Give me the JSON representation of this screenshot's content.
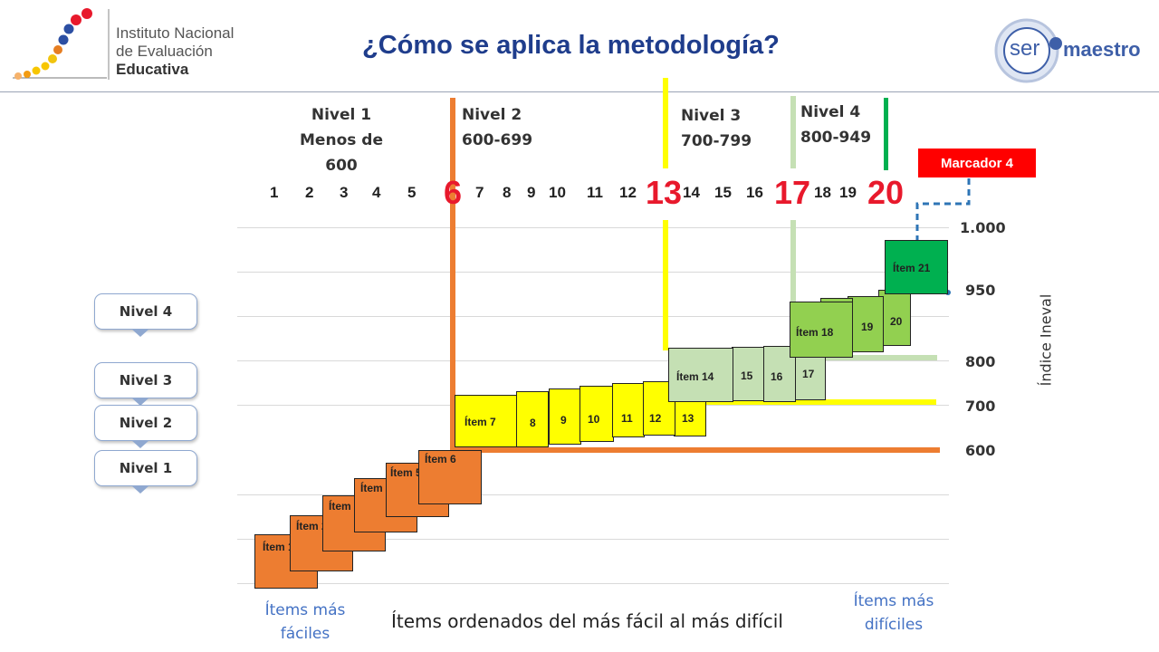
{
  "title": "¿Cómo se aplica la metodología?",
  "institute": {
    "line1": "Instituto Nacional",
    "line2": "de Evaluación",
    "line3": "Educativa"
  },
  "partner_logo": {
    "circle_text": "ser",
    "word": "maestro"
  },
  "level_headers": [
    {
      "name": "Nivel 1",
      "range": "Menos de 600"
    },
    {
      "name": "Nivel 2",
      "range": "600-699"
    },
    {
      "name": "Nivel 3",
      "range": "700-799"
    },
    {
      "name": "Nivel 4",
      "range": "800-949"
    }
  ],
  "ruler_numbers": [
    "1",
    "2",
    "3",
    "4",
    "5",
    "7",
    "8",
    "9",
    "10",
    "11",
    "12",
    "14",
    "15",
    "16",
    "18",
    "19"
  ],
  "cut_numbers": [
    "6",
    "13",
    "17",
    "20"
  ],
  "marker_label": "Marcador 4",
  "y_ticks": [
    "1.000",
    "950",
    "800",
    "700",
    "600"
  ],
  "y_axis_label": "Índice Ineval",
  "level_callouts": [
    "Nivel 4",
    "Nivel 3",
    "Nivel 2",
    "Nivel 1"
  ],
  "items": [
    {
      "label": "Ítem 1",
      "color": "orange"
    },
    {
      "label": "Ítem 2",
      "color": "orange"
    },
    {
      "label": "Ítem 3",
      "color": "orange"
    },
    {
      "label": "Ítem 4",
      "color": "orange"
    },
    {
      "label": "Ítem 5",
      "color": "orange"
    },
    {
      "label": "Ítem 6",
      "color": "orange"
    },
    {
      "label": "Ítem 7",
      "color": "yellow"
    },
    {
      "label": "8",
      "color": "yellow"
    },
    {
      "label": "9",
      "color": "yellow"
    },
    {
      "label": "10",
      "color": "yellow"
    },
    {
      "label": "11",
      "color": "yellow"
    },
    {
      "label": "12",
      "color": "yellow"
    },
    {
      "label": "13",
      "color": "yellow"
    },
    {
      "label": "Ítem 14",
      "color": "lightgreen"
    },
    {
      "label": "15",
      "color": "lightgreen"
    },
    {
      "label": "16",
      "color": "lightgreen"
    },
    {
      "label": "17",
      "color": "lightgreen"
    },
    {
      "label": "Ítem 18",
      "color": "green"
    },
    {
      "label": "19",
      "color": "green"
    },
    {
      "label": "20",
      "color": "green"
    },
    {
      "label": "Ítem 21",
      "color": "darkgreen"
    }
  ],
  "colors": {
    "orange": "#ed7d31",
    "yellow": "#ffff00",
    "lightgreen": "#c5e0b4",
    "green": "#92d050",
    "darkgreen": "#00b050",
    "red": "#e8192c",
    "title_blue": "#1f3d8c"
  },
  "easy_note": {
    "line1": "Ítems más",
    "line2": "fáciles"
  },
  "hard_note": {
    "line1": "Ítems más",
    "line2": "difíciles"
  },
  "x_caption": "Ítems ordenados del más fácil al más difícil"
}
